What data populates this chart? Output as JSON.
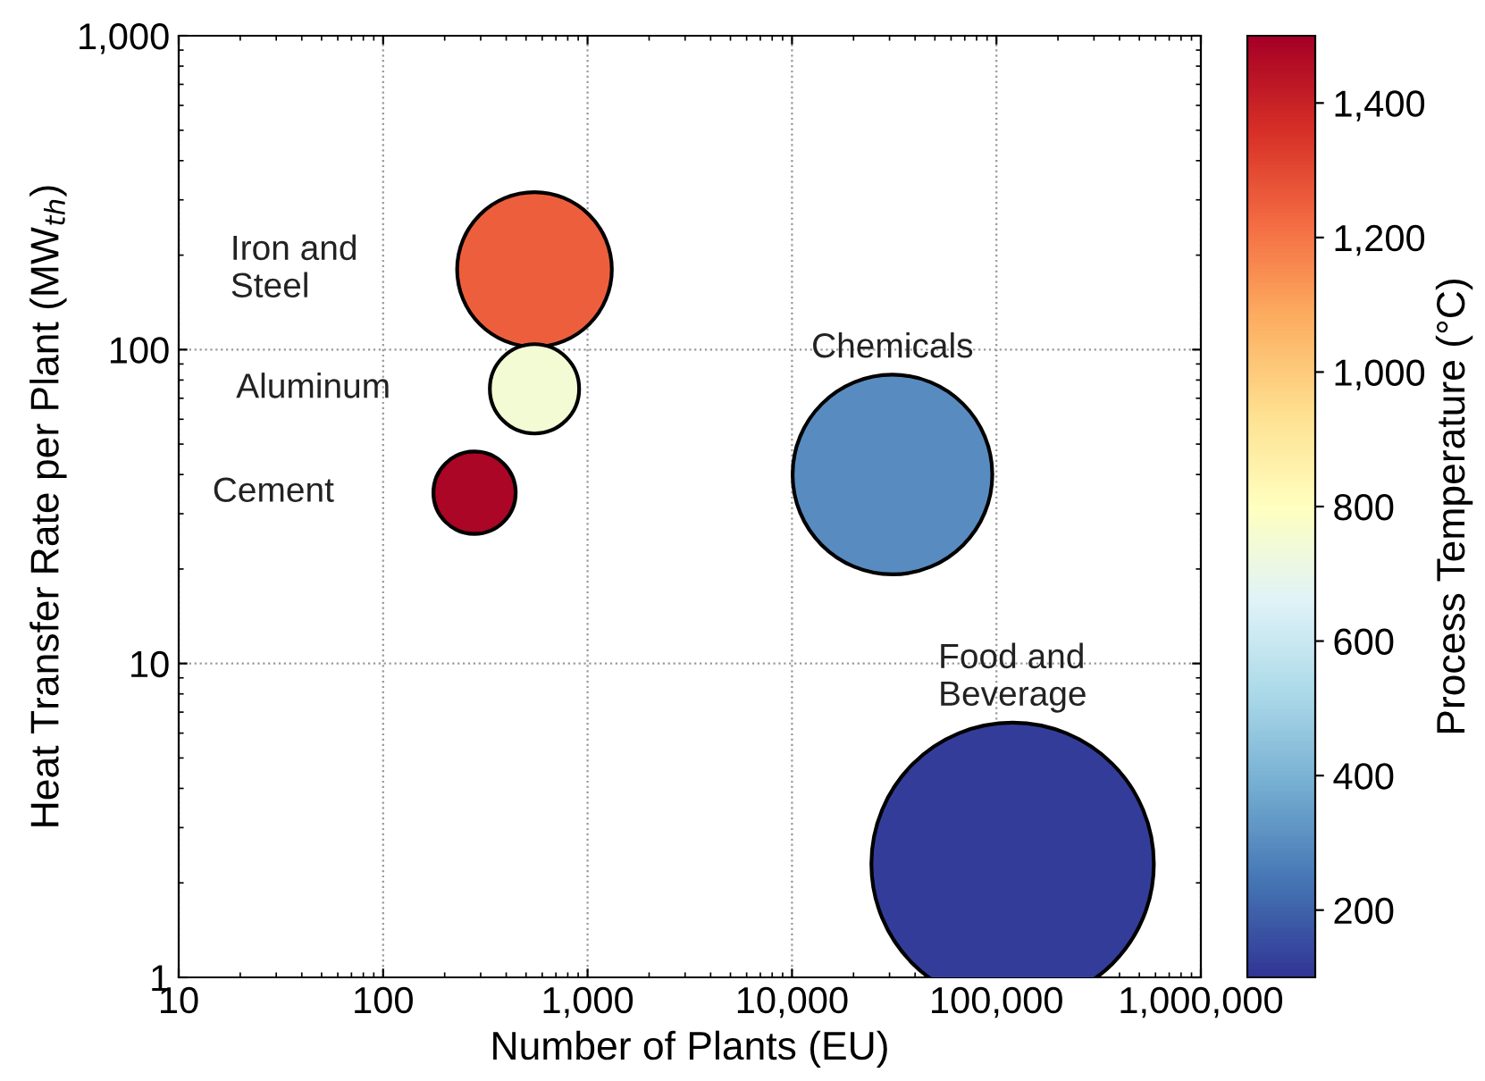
{
  "chart_data": {
    "type": "bubble",
    "xlabel": "Number of Plants (EU)",
    "ylabel": "Heat Transfer Rate per Plant (MW$_{th}$)",
    "clabel": "Process Temperature (°C)",
    "log": "xy",
    "xlim": [
      10,
      1000000
    ],
    "ylim": [
      1,
      1000
    ],
    "xticks": [
      {
        "value": 10,
        "label": "10"
      },
      {
        "value": 100,
        "label": "100"
      },
      {
        "value": 1000,
        "label": "1,000"
      },
      {
        "value": 10000,
        "label": "10,000"
      },
      {
        "value": 100000,
        "label": "100,000"
      },
      {
        "value": 1000000,
        "label": "1,000,000"
      }
    ],
    "yticks": [
      {
        "value": 1,
        "label": "1"
      },
      {
        "value": 10,
        "label": "10"
      },
      {
        "value": 100,
        "label": "100"
      },
      {
        "value": 1000,
        "label": "1,000"
      }
    ],
    "clim": [
      100,
      1500
    ],
    "cticks": [
      {
        "value": 200,
        "label": "200"
      },
      {
        "value": 400,
        "label": "400"
      },
      {
        "value": 600,
        "label": "600"
      },
      {
        "value": 800,
        "label": "800"
      },
      {
        "value": 1000,
        "label": "1,000"
      },
      {
        "value": 1200,
        "label": "1,200"
      },
      {
        "value": 1400,
        "label": "1,400"
      }
    ],
    "grid": true,
    "legend": false,
    "x": [
      550,
      550,
      280,
      31000,
      120000
    ],
    "values": [
      180,
      75,
      35,
      40,
      2.3
    ],
    "sizes": [
      0.3,
      0.1,
      0.085,
      0.5,
      1
    ],
    "cvalues": [
      1250,
      750,
      1480,
      300,
      120
    ],
    "annotations": [
      "Iron and\nSteel",
      "Aluminum",
      "Cement",
      "Chemicals",
      "Food and\nBeverage"
    ]
  }
}
